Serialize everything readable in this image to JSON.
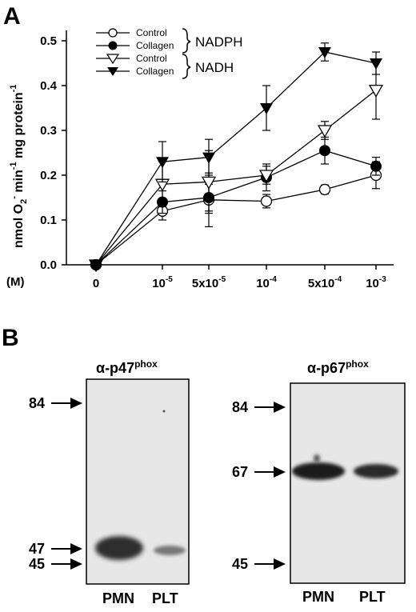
{
  "panel_a": {
    "letter": "A",
    "ylabel_main": "nmol O",
    "ylabel_sub": "2",
    "ylabel_sup": "-",
    "ylabel_mid": " min",
    "ylabel_sup2": "-1",
    "ylabel_tail": " mg protein",
    "ylabel_sup3": "-1",
    "x_unit_label": "(M)",
    "x_ticks": [
      {
        "base": "0",
        "exp": ""
      },
      {
        "base": "10",
        "exp": "-5"
      },
      {
        "base": "5x10",
        "exp": "-5"
      },
      {
        "base": "10",
        "exp": "-4"
      },
      {
        "base": "5x10",
        "exp": "-4"
      },
      {
        "base": "10",
        "exp": "-3"
      }
    ],
    "y_ticks": [
      "0.0",
      "0.1",
      "0.2",
      "0.3",
      "0.4",
      "0.5"
    ],
    "legend": {
      "groups": [
        "NADPH",
        "NADH"
      ],
      "entries": [
        "Control",
        "Collagen",
        "Control",
        "Collagen"
      ]
    }
  },
  "chart_data": {
    "type": "line",
    "xlabel": "(M)",
    "ylabel": "nmol O2- min-1 mg protein-1",
    "categories": [
      "0",
      "10-5",
      "5x10-5",
      "10-4",
      "5x10-4",
      "10-3"
    ],
    "ylim": [
      0,
      0.55
    ],
    "grid": false,
    "legend_position": "top-left",
    "series": [
      {
        "name": "Control",
        "group": "NADPH",
        "marker": "circle-open",
        "values": [
          0.0,
          0.12,
          0.145,
          0.142,
          0.168,
          0.2
        ],
        "errors": [
          0,
          0.02,
          0.06,
          0.015,
          0.01,
          0.03
        ]
      },
      {
        "name": "Collagen",
        "group": "NADPH",
        "marker": "circle-filled",
        "values": [
          0.0,
          0.14,
          0.15,
          0.195,
          0.255,
          0.22
        ],
        "errors": [
          0,
          0.025,
          0.03,
          0.03,
          0.03,
          0.02
        ]
      },
      {
        "name": "Control",
        "group": "NADH",
        "marker": "triangle-open",
        "values": [
          0.0,
          0.18,
          0.185,
          0.2,
          0.3,
          0.39
        ],
        "errors": [
          0,
          0.05,
          0.07,
          0.02,
          0.02,
          0.065
        ]
      },
      {
        "name": "Collagen",
        "group": "NADH",
        "marker": "triangle-filled",
        "values": [
          0.0,
          0.23,
          0.24,
          0.35,
          0.475,
          0.45
        ],
        "errors": [
          0,
          0.045,
          0.04,
          0.05,
          0.02,
          0.025
        ]
      }
    ]
  },
  "panel_b": {
    "letter": "B",
    "blots": [
      {
        "title_base": "α-p47",
        "title_sup": "phox",
        "markers": [
          "84",
          "47",
          "45"
        ],
        "lanes": [
          "PMN",
          "PLT"
        ]
      },
      {
        "title_base": "α-p67",
        "title_sup": "phox",
        "markers": [
          "84",
          "67",
          "45"
        ],
        "lanes": [
          "PMN",
          "PLT"
        ]
      }
    ]
  }
}
